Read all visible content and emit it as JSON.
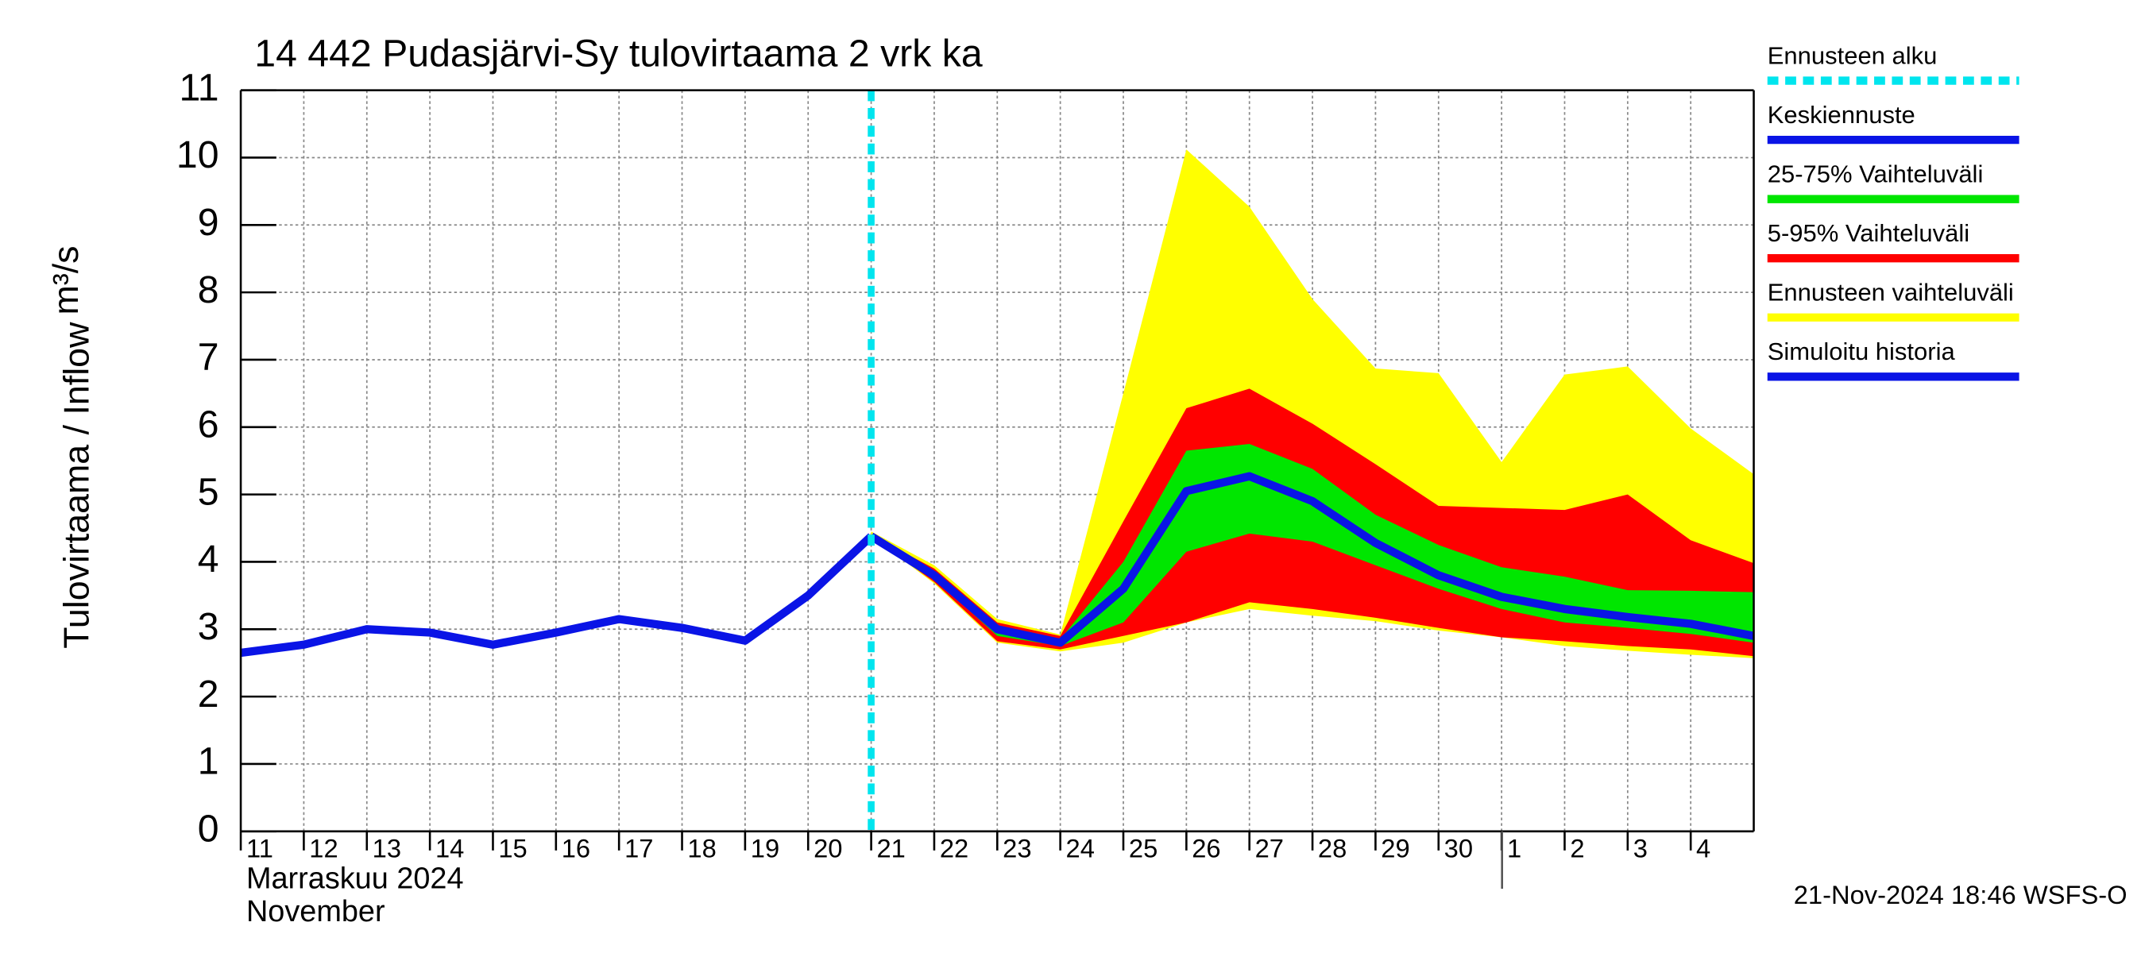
{
  "chart_data": {
    "type": "line",
    "title": "14 442 Pudasjärvi-Sy tulovirtaama 2 vrk ka",
    "y_label": "Tulovirtaama / Inflow",
    "y_unit": "m³/s",
    "x_label_1": "Marraskuu 2024",
    "x_label_2": "November",
    "footer": "21-Nov-2024 18:46 WSFS-O",
    "xlim": [
      "2024-11-11",
      "2024-12-05"
    ],
    "xticks": [
      {
        "value": "2024-11-11",
        "label": "11"
      },
      {
        "value": "2024-11-12",
        "label": "12"
      },
      {
        "value": "2024-11-13",
        "label": "13"
      },
      {
        "value": "2024-11-14",
        "label": "14"
      },
      {
        "value": "2024-11-15",
        "label": "15"
      },
      {
        "value": "2024-11-16",
        "label": "16"
      },
      {
        "value": "2024-11-17",
        "label": "17"
      },
      {
        "value": "2024-11-18",
        "label": "18"
      },
      {
        "value": "2024-11-19",
        "label": "19"
      },
      {
        "value": "2024-11-20",
        "label": "20"
      },
      {
        "value": "2024-11-21",
        "label": "21"
      },
      {
        "value": "2024-11-22",
        "label": "22"
      },
      {
        "value": "2024-11-23",
        "label": "23"
      },
      {
        "value": "2024-11-24",
        "label": "24"
      },
      {
        "value": "2024-11-25",
        "label": "25"
      },
      {
        "value": "2024-11-26",
        "label": "26"
      },
      {
        "value": "2024-11-27",
        "label": "27"
      },
      {
        "value": "2024-11-28",
        "label": "28"
      },
      {
        "value": "2024-11-29",
        "label": "29"
      },
      {
        "value": "2024-11-30",
        "label": "30"
      },
      {
        "value": "2024-12-01",
        "label": "1"
      },
      {
        "value": "2024-12-02",
        "label": "2"
      },
      {
        "value": "2024-12-03",
        "label": "3"
      },
      {
        "value": "2024-12-04",
        "label": "4"
      }
    ],
    "ylim": [
      0,
      11
    ],
    "yticks": [
      0,
      1,
      2,
      3,
      4,
      5,
      6,
      7,
      8,
      9,
      10,
      11
    ],
    "grid": true,
    "forecast_start": {
      "name": "Ennusteen alku",
      "color": "#00e5ee",
      "x": "2024-11-21"
    },
    "series": [
      {
        "name": "Keskiennuste",
        "color": "#0a14e6",
        "kind": "line",
        "x": [
          "2024-11-21",
          "2024-11-22",
          "2024-11-23",
          "2024-11-24",
          "2024-11-25",
          "2024-11-26",
          "2024-11-27",
          "2024-11-28",
          "2024-11-29",
          "2024-11-30",
          "2024-12-01",
          "2024-12-02",
          "2024-12-03",
          "2024-12-04",
          "2024-12-05"
        ],
        "values": [
          4.38,
          3.8,
          3.0,
          2.8,
          3.6,
          5.05,
          5.27,
          4.9,
          4.28,
          3.8,
          3.48,
          3.3,
          3.18,
          3.08,
          2.9
        ]
      },
      {
        "name": "25-75% Vaihteluväli",
        "color": "#00e600",
        "kind": "band",
        "x": [
          "2024-11-21",
          "2024-11-22",
          "2024-11-23",
          "2024-11-24",
          "2024-11-25",
          "2024-11-26",
          "2024-11-27",
          "2024-11-28",
          "2024-11-29",
          "2024-11-30",
          "2024-12-01",
          "2024-12-02",
          "2024-12-03",
          "2024-12-04",
          "2024-12-05"
        ],
        "low": [
          4.38,
          3.75,
          2.9,
          2.75,
          3.1,
          4.15,
          4.42,
          4.3,
          3.95,
          3.6,
          3.3,
          3.1,
          3.02,
          2.93,
          2.8
        ],
        "high": [
          4.38,
          3.85,
          3.05,
          2.85,
          4.0,
          5.65,
          5.75,
          5.38,
          4.7,
          4.25,
          3.92,
          3.78,
          3.58,
          3.57,
          3.55
        ]
      },
      {
        "name": "5-95% Vaihteluväli",
        "color": "#ff0000",
        "kind": "band",
        "x": [
          "2024-11-21",
          "2024-11-22",
          "2024-11-23",
          "2024-11-24",
          "2024-11-25",
          "2024-11-26",
          "2024-11-27",
          "2024-11-28",
          "2024-11-29",
          "2024-11-30",
          "2024-12-01",
          "2024-12-02",
          "2024-12-03",
          "2024-12-04",
          "2024-12-05"
        ],
        "low": [
          4.38,
          3.7,
          2.82,
          2.7,
          2.9,
          3.1,
          3.4,
          3.3,
          3.17,
          3.02,
          2.88,
          2.82,
          2.75,
          2.7,
          2.6
        ],
        "high": [
          4.4,
          3.9,
          3.1,
          2.9,
          4.6,
          6.28,
          6.57,
          6.05,
          5.45,
          4.83,
          4.8,
          4.77,
          5.0,
          4.32,
          3.98
        ]
      },
      {
        "name": "Ennusteen vaihteluväli",
        "color": "#ffff00",
        "kind": "band",
        "x": [
          "2024-11-21",
          "2024-11-22",
          "2024-11-23",
          "2024-11-24",
          "2024-11-25",
          "2024-11-26",
          "2024-11-27",
          "2024-11-28",
          "2024-11-29",
          "2024-11-30",
          "2024-12-01",
          "2024-12-02",
          "2024-12-03",
          "2024-12-04",
          "2024-12-05"
        ],
        "low": [
          4.38,
          3.68,
          2.8,
          2.67,
          2.8,
          3.1,
          3.3,
          3.2,
          3.12,
          2.98,
          2.88,
          2.75,
          2.68,
          2.62,
          2.57
        ],
        "high": [
          4.45,
          3.95,
          3.15,
          2.92,
          6.5,
          10.12,
          9.27,
          7.9,
          6.87,
          6.8,
          5.48,
          6.78,
          6.9,
          5.98,
          5.3
        ]
      },
      {
        "name": "Simuloitu historia",
        "color": "#0a14e6",
        "kind": "line",
        "x": [
          "2024-11-11",
          "2024-11-12",
          "2024-11-13",
          "2024-11-14",
          "2024-11-15",
          "2024-11-16",
          "2024-11-17",
          "2024-11-18",
          "2024-11-19",
          "2024-11-20",
          "2024-11-21"
        ],
        "values": [
          2.65,
          2.77,
          3.0,
          2.95,
          2.77,
          2.95,
          3.15,
          3.02,
          2.83,
          3.5,
          4.38
        ]
      }
    ]
  }
}
